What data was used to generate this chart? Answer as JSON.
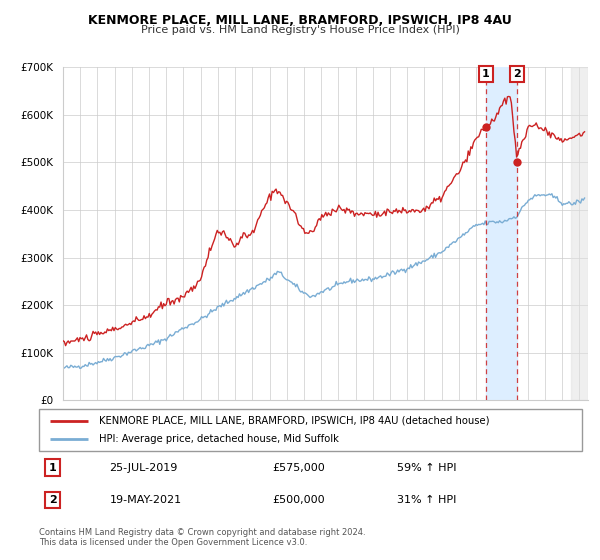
{
  "title": "KENMORE PLACE, MILL LANE, BRAMFORD, IPSWICH, IP8 4AU",
  "subtitle": "Price paid vs. HM Land Registry's House Price Index (HPI)",
  "legend_line1": "KENMORE PLACE, MILL LANE, BRAMFORD, IPSWICH, IP8 4AU (detached house)",
  "legend_line2": "HPI: Average price, detached house, Mid Suffolk",
  "hpi_color": "#7aadd4",
  "price_color": "#cc2222",
  "background_color": "#ffffff",
  "plot_bg_color": "#ffffff",
  "grid_color": "#cccccc",
  "shade_color": "#ddeeff",
  "future_shade_color": "#e8e8e8",
  "annotation1": {
    "label": "1",
    "date": "25-JUL-2019",
    "price": "£575,000",
    "pct": "59% ↑ HPI",
    "x": 2019.57
  },
  "annotation2": {
    "label": "2",
    "date": "19-MAY-2021",
    "price": "£500,000",
    "pct": "31% ↑ HPI",
    "x": 2021.38
  },
  "ann1_y": 575000,
  "ann2_y": 500000,
  "footer1": "Contains HM Land Registry data © Crown copyright and database right 2024.",
  "footer2": "This data is licensed under the Open Government Licence v3.0.",
  "ylim": [
    0,
    700000
  ],
  "xlim_start": 1995.0,
  "xlim_end": 2025.5,
  "future_shade_start": 2024.5,
  "yticks": [
    0,
    100000,
    200000,
    300000,
    400000,
    500000,
    600000,
    700000
  ],
  "ytick_labels": [
    "£0",
    "£100K",
    "£200K",
    "£300K",
    "£400K",
    "£500K",
    "£600K",
    "£700K"
  ],
  "xticks": [
    1995,
    1996,
    1997,
    1998,
    1999,
    2000,
    2001,
    2002,
    2003,
    2004,
    2005,
    2006,
    2007,
    2008,
    2009,
    2010,
    2011,
    2012,
    2013,
    2014,
    2015,
    2016,
    2017,
    2018,
    2019,
    2020,
    2021,
    2022,
    2023,
    2024,
    2025
  ]
}
